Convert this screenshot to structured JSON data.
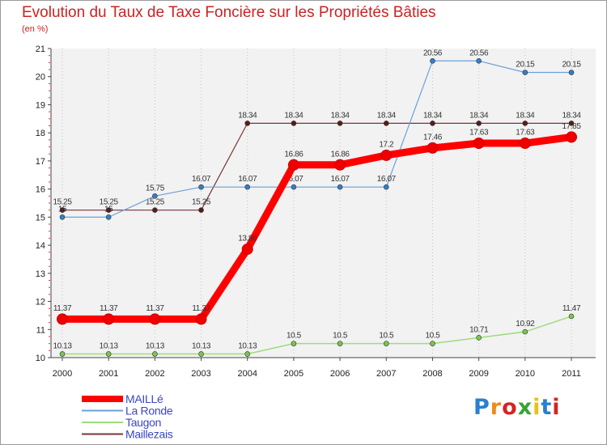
{
  "title": "Evolution du Taux de Taxe Foncière sur les Propriétés Bâties",
  "unit": "(en %)",
  "logo": {
    "text": "Proxiti",
    "colors": [
      "#2a7fd0",
      "#f08a1c",
      "#d52525",
      "#35a535",
      "#e8c11a",
      "#2a7fd0",
      "#d52525"
    ]
  },
  "chart_data": {
    "type": "line",
    "title": "Evolution du Taux de Taxe Foncière sur les Propriétés Bâties",
    "ylabel": "(en %)",
    "xlabel": "",
    "categories": [
      "2000",
      "2001",
      "2002",
      "2003",
      "2004",
      "2005",
      "2006",
      "2007",
      "2008",
      "2009",
      "2010",
      "2011"
    ],
    "ylim": [
      10,
      21
    ],
    "yticks": [
      10,
      11,
      12,
      13,
      14,
      15,
      16,
      17,
      18,
      19,
      20,
      21
    ],
    "legend_position": "bottom-left",
    "series": [
      {
        "name": "Maillezais",
        "color": "#7a3535",
        "dot": "#5a1a1a",
        "width": 1.2,
        "radius": 3,
        "values": [
          15.25,
          15.25,
          15.25,
          15.25,
          18.34,
          18.34,
          18.34,
          18.34,
          18.34,
          18.34,
          18.34,
          18.34
        ],
        "labels": [
          "15.25",
          "15.25",
          "15.25",
          "15.25",
          "18.34",
          "18.34",
          "18.34",
          "18.34",
          "18.34",
          "18.34",
          "18.34",
          "18.34"
        ]
      },
      {
        "name": "La Ronde",
        "color": "#6aa0d8",
        "dot": "#2f7fc8",
        "width": 1.2,
        "radius": 3,
        "values": [
          15,
          15,
          15.75,
          16.07,
          16.07,
          16.07,
          16.07,
          16.07,
          20.56,
          20.56,
          20.15,
          20.15
        ],
        "labels": [
          "15",
          "15",
          "15.75",
          "16.07",
          "16.07",
          "16.07",
          "16.07",
          "16.07",
          "20.56",
          "20.56",
          "20.15",
          "20.15"
        ]
      },
      {
        "name": "Taugon",
        "color": "#9fdc7c",
        "dot": "#7ac64e",
        "width": 1.5,
        "radius": 3,
        "values": [
          10.13,
          10.13,
          10.13,
          10.13,
          10.13,
          10.5,
          10.5,
          10.5,
          10.5,
          10.71,
          10.92,
          11.47
        ],
        "labels": [
          "10.13",
          "10.13",
          "10.13",
          "10.13",
          "10.13",
          "10.5",
          "10.5",
          "10.5",
          "10.5",
          "10.71",
          "10.92",
          "11.47"
        ]
      },
      {
        "name": "MAILLé",
        "color": "#ff0000",
        "dot": "#ee0000",
        "width": 9,
        "radius": 6.5,
        "values": [
          11.37,
          11.37,
          11.37,
          11.37,
          13.86,
          16.86,
          16.86,
          17.2,
          17.46,
          17.63,
          17.63,
          17.85
        ],
        "labels": [
          "11.37",
          "11.37",
          "11.37",
          "11.37",
          "13.86",
          "16.86",
          "16.86",
          "17.2",
          "17.46",
          "17.63",
          "17.63",
          "17.85"
        ]
      }
    ],
    "legend": [
      "MAILLé",
      "La Ronde",
      "Taugon",
      "Maillezais"
    ]
  }
}
